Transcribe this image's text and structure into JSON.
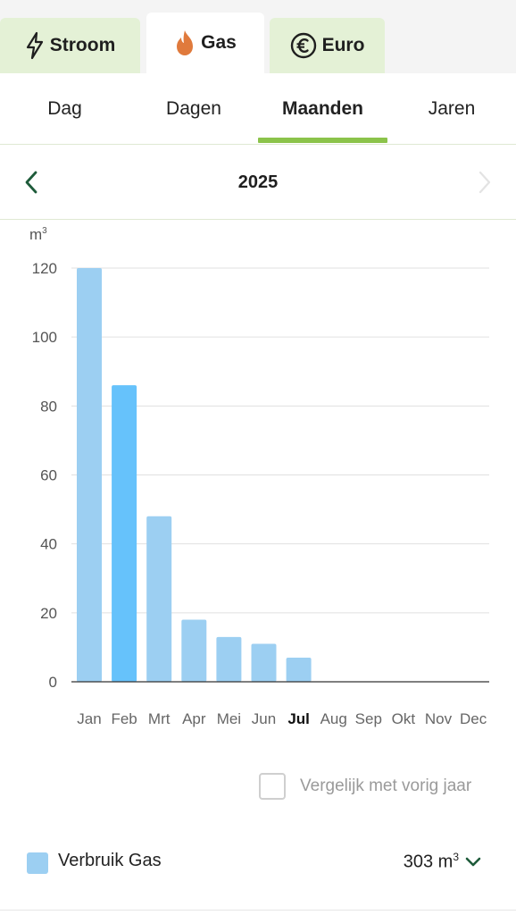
{
  "energy_tabs": [
    {
      "label": "Stroom",
      "icon": "lightning-icon",
      "active": false
    },
    {
      "label": "Gas",
      "icon": "flame-icon",
      "active": true
    },
    {
      "label": "Euro",
      "icon": "euro-icon",
      "active": false
    }
  ],
  "period_tabs": [
    {
      "label": "Dag",
      "active": false
    },
    {
      "label": "Dagen",
      "active": false
    },
    {
      "label": "Maanden",
      "active": true
    },
    {
      "label": "Jaren",
      "active": false
    }
  ],
  "year_nav": {
    "year": "2025",
    "prev_icon": "chevron-left-icon",
    "next_icon": "chevron-right-icon",
    "next_disabled": true
  },
  "chart_data": {
    "type": "bar",
    "unit_label": "m",
    "unit_superscript": "3",
    "categories": [
      "Jan",
      "Feb",
      "Mrt",
      "Apr",
      "Mei",
      "Jun",
      "Jul",
      "Aug",
      "Sep",
      "Okt",
      "Nov",
      "Dec"
    ],
    "values": [
      120,
      86,
      48,
      18,
      13,
      11,
      7,
      null,
      null,
      null,
      null,
      null
    ],
    "highlighted_category": "Feb",
    "current_category": "Jul",
    "ylim": [
      0,
      120
    ],
    "yticks": [
      0,
      20,
      40,
      60,
      80,
      100,
      120
    ],
    "grid": true,
    "colors": {
      "bar": "#9ccff2",
      "bar_highlight": "#66c2fb",
      "grid": "#e0e0e0",
      "axis": "#333333"
    }
  },
  "compare": {
    "label": "Vergelijk met vorig jaar",
    "checked": false
  },
  "legend": {
    "label": "Verbruik Gas",
    "total": "303 m",
    "total_superscript": "3",
    "expand_icon": "chevron-down-icon",
    "swatch_color": "#9ccff2"
  },
  "colors": {
    "accent": "#8bc34a",
    "inactive_tab_bg": "#e4f1d6",
    "nav_green": "#1e5b3a",
    "flame": "#e07a3c"
  }
}
